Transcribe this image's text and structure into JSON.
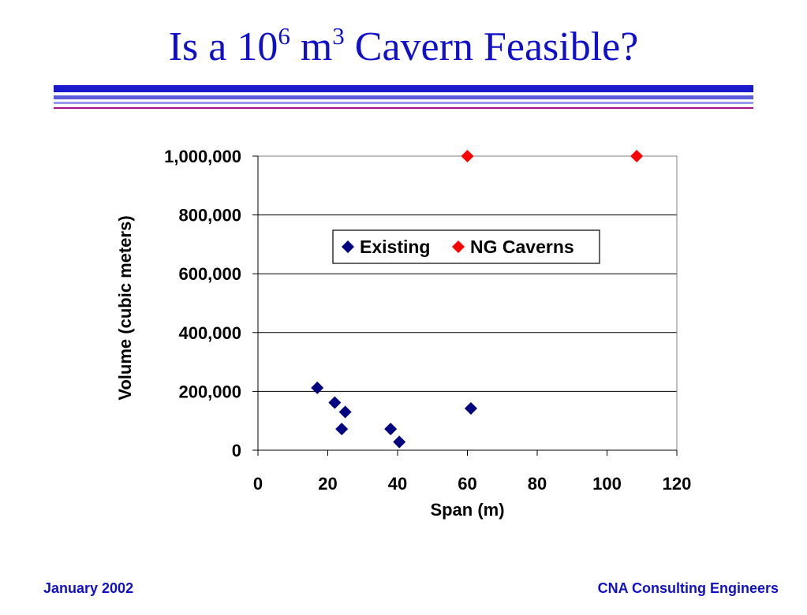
{
  "slide": {
    "title_main": "Is a 10",
    "title_sup1": "6",
    "title_mid": " m",
    "title_sup2": "3",
    "title_end": " Cavern Feasible?",
    "footer_left": "January 2002",
    "footer_right": "CNA Consulting Engineers",
    "colors": {
      "title": "#1010cc",
      "rule_dark": "#1a1acc",
      "rule_mid": "#5b5bdd",
      "rule_light": "#9999ee",
      "rule_magenta": "#aa1188"
    }
  },
  "chart_data": {
    "type": "scatter",
    "title": "",
    "xlabel": "Span (m)",
    "ylabel": "Volume (cubic meters)",
    "xlim": [
      0,
      120
    ],
    "ylim": [
      0,
      1000000
    ],
    "x_ticks": [
      "0",
      "20",
      "40",
      "60",
      "80",
      "100",
      "120"
    ],
    "x_tick_values": [
      0,
      20,
      40,
      60,
      80,
      100,
      120
    ],
    "y_ticks": [
      "0",
      "200,000",
      "400,000",
      "600,000",
      "800,000",
      "1,000,000"
    ],
    "y_tick_values": [
      0,
      200000,
      400000,
      600000,
      800000,
      1000000
    ],
    "grid": "horizontal",
    "legend_position": "upper-right",
    "series": [
      {
        "name": "Existing",
        "color": "#000080",
        "marker": "diamond",
        "points": [
          [
            17,
            212000
          ],
          [
            22,
            162000
          ],
          [
            25,
            130000
          ],
          [
            24,
            72000
          ],
          [
            38,
            72000
          ],
          [
            40.5,
            28000
          ],
          [
            61,
            142000
          ]
        ]
      },
      {
        "name": "NG Caverns",
        "color": "#ff0000",
        "marker": "diamond",
        "points": [
          [
            60,
            1000000
          ],
          [
            108.5,
            1000000
          ]
        ]
      }
    ]
  }
}
